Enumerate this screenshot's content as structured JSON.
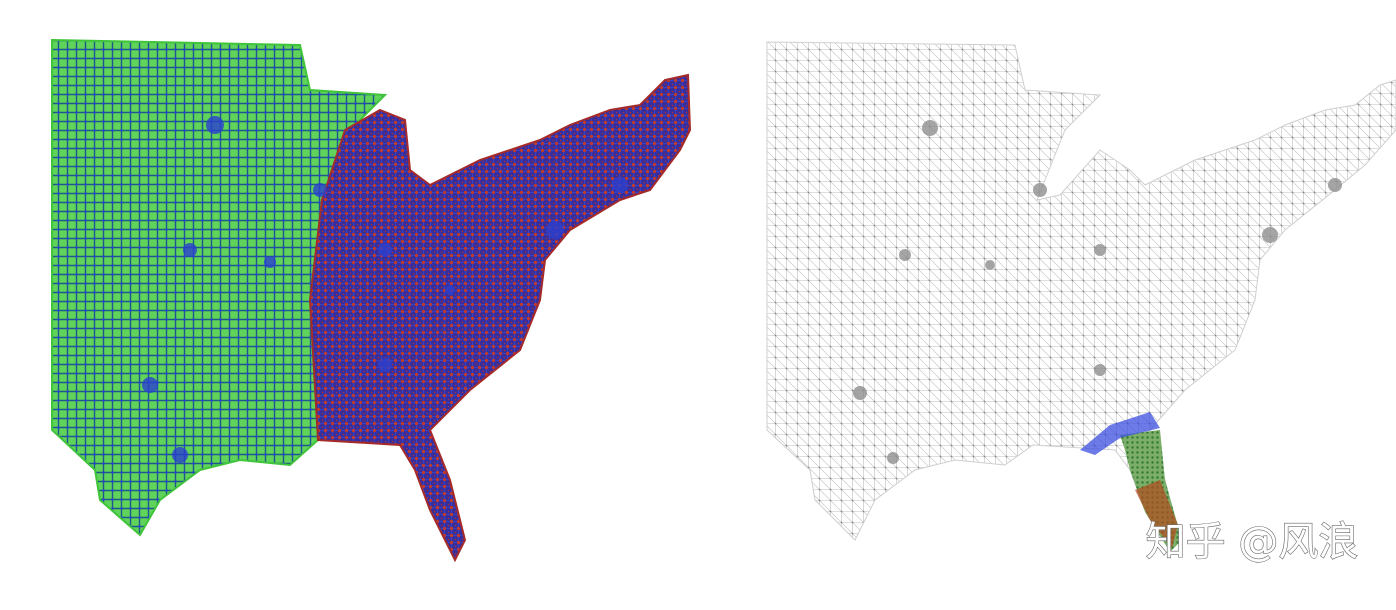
{
  "watermark": "知乎 @风浪"
}
